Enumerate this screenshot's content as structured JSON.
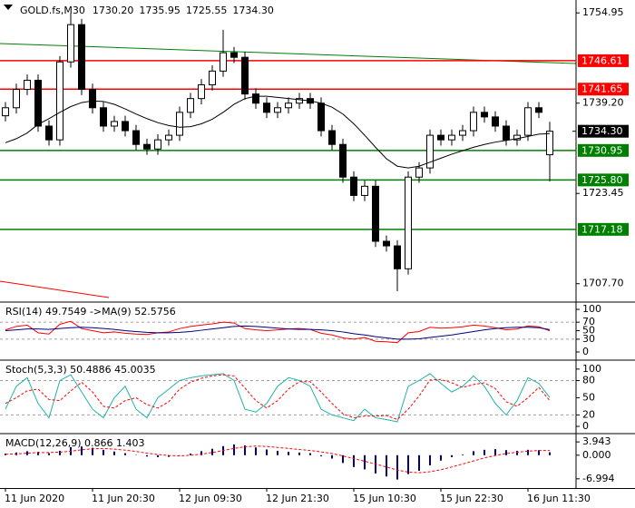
{
  "chart_data": [
    {
      "type": "candlestick",
      "title": "GOLD.fs,M30",
      "last_bar_labels": [
        "1730.20",
        "1735.95",
        "1725.55",
        "1734.30"
      ],
      "categories": [
        "11 Jun 2020",
        null,
        null,
        null,
        null,
        null,
        null,
        null,
        "11 Jun 20:30",
        null,
        null,
        null,
        null,
        null,
        null,
        null,
        "12 Jun 09:30",
        null,
        null,
        null,
        null,
        null,
        null,
        null,
        "12 Jun 21:30",
        null,
        null,
        null,
        null,
        null,
        null,
        null,
        "15 Jun 10:30",
        null,
        null,
        null,
        null,
        null,
        null,
        null,
        "15 Jun 22:30",
        null,
        null,
        null,
        null,
        null,
        null,
        null,
        "16 Jun 11:30",
        null,
        null
      ],
      "open": [
        1737.0,
        1738.4,
        1741.6,
        1743.2,
        1735.2,
        1732.8,
        1746.4,
        1752.9,
        1741.6,
        1738.4,
        1735.2,
        1736.0,
        1734.4,
        1732.0,
        1731.2,
        1732.8,
        1733.6,
        1737.6,
        1740.0,
        1742.4,
        1744.8,
        1748.0,
        1747.2,
        1740.8,
        1739.2,
        1737.6,
        1738.4,
        1739.2,
        1740.0,
        1739.2,
        1734.4,
        1732.0,
        1726.3,
        1723.1,
        1724.7,
        1715.1,
        1714.3,
        1710.3,
        1726.3,
        1727.9,
        1733.6,
        1732.8,
        1733.6,
        1734.4,
        1737.6,
        1736.8,
        1735.2,
        1732.8,
        1733.6,
        1738.4,
        1730.2
      ],
      "high": [
        1739.4,
        1742.6,
        1744.2,
        1744.2,
        1736.2,
        1747.4,
        1754.9,
        1753.9,
        1742.6,
        1739.4,
        1737.0,
        1737.0,
        1735.4,
        1733.0,
        1733.8,
        1734.6,
        1738.6,
        1741.0,
        1743.4,
        1745.8,
        1752.0,
        1749.0,
        1748.2,
        1741.8,
        1740.2,
        1739.4,
        1740.2,
        1741.0,
        1741.0,
        1740.2,
        1735.4,
        1733.0,
        1727.3,
        1725.7,
        1725.7,
        1716.1,
        1715.3,
        1727.3,
        1728.9,
        1734.6,
        1734.6,
        1734.6,
        1735.4,
        1738.6,
        1738.6,
        1737.8,
        1736.2,
        1734.6,
        1739.4,
        1739.4,
        1735.95
      ],
      "low": [
        1736.0,
        1737.4,
        1740.6,
        1734.2,
        1731.8,
        1731.8,
        1745.4,
        1740.6,
        1737.4,
        1734.2,
        1734.2,
        1733.4,
        1731.0,
        1730.2,
        1730.2,
        1731.8,
        1732.6,
        1736.6,
        1739.0,
        1741.4,
        1743.8,
        1746.2,
        1739.8,
        1738.2,
        1736.6,
        1736.6,
        1737.4,
        1738.2,
        1738.2,
        1733.4,
        1731.0,
        1725.3,
        1722.1,
        1722.1,
        1714.1,
        1713.3,
        1706.4,
        1709.3,
        1725.3,
        1726.9,
        1731.8,
        1731.8,
        1732.6,
        1733.4,
        1735.8,
        1734.2,
        1731.8,
        1731.8,
        1732.6,
        1736.6,
        1725.55
      ],
      "close": [
        1738.4,
        1741.6,
        1743.2,
        1735.2,
        1732.8,
        1746.4,
        1752.9,
        1741.6,
        1738.4,
        1735.2,
        1736.0,
        1734.4,
        1732.0,
        1731.2,
        1732.8,
        1733.6,
        1737.6,
        1740.0,
        1742.4,
        1744.8,
        1748.0,
        1747.2,
        1740.8,
        1739.2,
        1737.6,
        1738.4,
        1739.2,
        1740.0,
        1739.2,
        1734.4,
        1732.0,
        1726.3,
        1723.1,
        1724.7,
        1715.1,
        1714.3,
        1710.3,
        1726.3,
        1727.9,
        1733.6,
        1732.8,
        1733.6,
        1734.4,
        1737.6,
        1736.8,
        1735.2,
        1732.8,
        1733.6,
        1738.4,
        1737.6,
        1734.3
      ],
      "up_color": "#ffffff",
      "down_color": "#000000",
      "line_color": "#000000",
      "overlay": {
        "color": "#000000",
        "values": [
          1732.3,
          1733.0,
          1734.0,
          1735.5,
          1736.5,
          1737.6,
          1738.6,
          1739.3,
          1739.6,
          1739.5,
          1739.0,
          1738.2,
          1737.3,
          1736.5,
          1735.8,
          1735.3,
          1735.0,
          1735.1,
          1735.6,
          1736.4,
          1737.6,
          1739.0,
          1740.0,
          1740.4,
          1740.4,
          1740.2,
          1740.0,
          1739.8,
          1739.6,
          1739.2,
          1738.5,
          1737.3,
          1735.6,
          1733.6,
          1731.5,
          1729.5,
          1728.2,
          1727.9,
          1728.2,
          1728.9,
          1729.6,
          1730.3,
          1730.9,
          1731.5,
          1732.0,
          1732.4,
          1732.7,
          1733.0,
          1733.4,
          1733.8,
          1733.9
        ]
      },
      "levels": [
        {
          "value": 1746.61,
          "color": "#ff0000"
        },
        {
          "value": 1741.65,
          "color": "#ff0000"
        },
        {
          "value": 1730.95,
          "color": "#008000"
        },
        {
          "value": 1725.8,
          "label": "1725.80",
          "color": "#008000"
        },
        {
          "value": 1717.18,
          "color": "#008000"
        }
      ],
      "current": {
        "value": 1734.3,
        "label": "1734.30",
        "color": "#000000"
      },
      "ylim": [
        1704.65,
        1757.2
      ],
      "yticks": [
        1754.95,
        {
          "value": 1739.2,
          "label": "1739.20"
        },
        1723.45,
        {
          "value": 1707.7,
          "label": "1707.70"
        }
      ]
    },
    {
      "type": "line",
      "title": "RSI(14) 49.7549 ->MA(9) 52.5756",
      "series": [
        {
          "color": "#ff0000",
          "values": [
            52,
            60,
            63,
            45,
            42,
            65,
            72,
            55,
            50,
            45,
            47,
            44,
            42,
            41,
            45,
            47,
            55,
            60,
            63,
            66,
            70,
            68,
            55,
            52,
            50,
            52,
            54,
            55,
            53,
            44,
            40,
            33,
            30,
            34,
            25,
            24,
            22,
            45,
            48,
            58,
            56,
            57,
            59,
            63,
            61,
            57,
            52,
            54,
            61,
            59,
            49.7549
          ]
        },
        {
          "color": "#000080",
          "values": [
            50,
            52,
            54,
            54,
            53,
            55,
            57,
            58,
            57,
            55,
            53,
            50,
            48,
            46,
            45,
            45,
            46,
            48,
            51,
            54,
            57,
            60,
            61,
            60,
            58,
            56,
            54,
            53,
            53,
            52,
            50,
            47,
            43,
            40,
            36,
            33,
            30,
            30,
            31,
            34,
            37,
            40,
            44,
            48,
            52,
            55,
            57,
            58,
            58,
            57,
            52.5756
          ]
        }
      ],
      "levels": [
        70,
        30
      ],
      "ylim": [
        -17,
        115
      ],
      "yticks": [
        100,
        70,
        50,
        30,
        0
      ]
    },
    {
      "type": "line",
      "title": "Stoch(5,3,3) 50.4886 45.0035",
      "series": [
        {
          "color": "#20b2aa",
          "values": [
            30,
            70,
            85,
            40,
            15,
            80,
            90,
            60,
            30,
            15,
            50,
            70,
            30,
            15,
            50,
            65,
            80,
            85,
            88,
            90,
            92,
            80,
            30,
            25,
            40,
            70,
            85,
            80,
            70,
            30,
            20,
            15,
            10,
            30,
            15,
            12,
            8,
            70,
            80,
            92,
            75,
            60,
            70,
            88,
            70,
            40,
            20,
            45,
            85,
            75,
            50.4886
          ]
        },
        {
          "color": "#ff0000",
          "dash": true,
          "values": [
            40,
            50,
            62,
            65,
            47,
            45,
            62,
            77,
            60,
            35,
            32,
            45,
            50,
            38,
            32,
            43,
            65,
            77,
            84,
            88,
            90,
            88,
            67,
            45,
            32,
            45,
            65,
            78,
            78,
            60,
            40,
            22,
            15,
            18,
            18,
            19,
            12,
            30,
            53,
            81,
            82,
            76,
            68,
            73,
            76,
            66,
            43,
            35,
            50,
            68,
            45.0035
          ]
        }
      ],
      "levels": [
        80,
        20
      ],
      "ylim": [
        -11,
        114
      ],
      "yticks": [
        100,
        80,
        50,
        20,
        0
      ]
    },
    {
      "type": "bar",
      "title": "MACD(12,26,9) 0.866 1.403",
      "series": [
        {
          "color": "#000080",
          "style": "bar",
          "values": [
            0.5,
            0.8,
            1.2,
            1.0,
            0.6,
            1.3,
            2.4,
            2.6,
            2.2,
            1.6,
            1.1,
            0.6,
            0.1,
            -0.4,
            -0.6,
            -0.5,
            -0.1,
            0.5,
            1.2,
            1.9,
            2.7,
            3.2,
            2.9,
            2.3,
            1.7,
            1.3,
            1.0,
            0.8,
            0.6,
            -0.3,
            -1.0,
            -2.3,
            -3.5,
            -4.2,
            -5.4,
            -6.3,
            -7.2,
            -5.6,
            -4.6,
            -3.0,
            -1.6,
            -0.6,
            0.2,
            1.2,
            1.6,
            1.8,
            1.5,
            1.3,
            1.6,
            1.5,
            0.866
          ]
        },
        {
          "color": "#ff0000",
          "dash": true,
          "values": [
            0.3,
            0.4,
            0.6,
            0.8,
            0.8,
            0.9,
            1.2,
            1.6,
            1.9,
            2.0,
            1.8,
            1.5,
            1.1,
            0.6,
            0.2,
            -0.1,
            -0.2,
            0.0,
            0.3,
            0.8,
            1.4,
            2.0,
            2.5,
            2.7,
            2.6,
            2.3,
            2.0,
            1.7,
            1.4,
            1.0,
            0.5,
            -0.2,
            -1.0,
            -1.8,
            -2.6,
            -3.5,
            -4.4,
            -5.0,
            -5.2,
            -4.9,
            -4.3,
            -3.5,
            -2.6,
            -1.7,
            -0.8,
            -0.1,
            0.5,
            0.9,
            1.2,
            1.4,
            1.403
          ]
        }
      ],
      "ylim": [
        -9.73,
        6.13
      ],
      "yticks": [
        3.943,
        {
          "value": 0,
          "label": "0.000"
        },
        -6.994
      ]
    }
  ]
}
